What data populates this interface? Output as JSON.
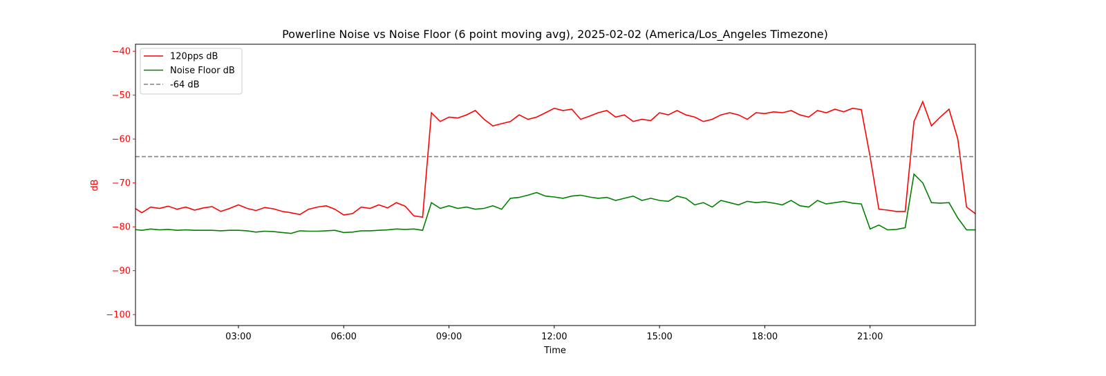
{
  "chart_data": {
    "type": "line",
    "title": "Powerline Noise vs Noise Floor (6 point moving avg), 2025-02-02 (America/Los_Angeles Timezone)",
    "xlabel": "Time",
    "ylabel": "dB",
    "xlim": [
      "00:04",
      "24:00"
    ],
    "ylim": [
      -102.5,
      -38.4
    ],
    "xticks": [
      "03:00",
      "06:00",
      "09:00",
      "12:00",
      "15:00",
      "18:00",
      "21:00"
    ],
    "yticks": [
      -40,
      -50,
      -60,
      -70,
      -80,
      -90,
      -100
    ],
    "ytick_labels": [
      "−40",
      "−50",
      "−60",
      "−70",
      "−80",
      "−90",
      "−100"
    ],
    "grid": false,
    "legend_placement": "top-left",
    "axis_label_color": "#ff0000",
    "x": [
      "00:00",
      "00:15",
      "00:30",
      "00:45",
      "01:00",
      "01:15",
      "01:30",
      "01:45",
      "02:00",
      "02:15",
      "02:30",
      "02:45",
      "03:00",
      "03:15",
      "03:30",
      "03:45",
      "04:00",
      "04:15",
      "04:30",
      "04:45",
      "05:00",
      "05:15",
      "05:30",
      "05:45",
      "06:00",
      "06:15",
      "06:30",
      "06:45",
      "07:00",
      "07:15",
      "07:30",
      "07:45",
      "08:00",
      "08:15",
      "08:30",
      "08:45",
      "09:00",
      "09:15",
      "09:30",
      "09:45",
      "10:00",
      "10:15",
      "10:30",
      "10:45",
      "11:00",
      "11:15",
      "11:30",
      "11:45",
      "12:00",
      "12:15",
      "12:30",
      "12:45",
      "13:00",
      "13:15",
      "13:30",
      "13:45",
      "14:00",
      "14:15",
      "14:30",
      "14:45",
      "15:00",
      "15:15",
      "15:30",
      "15:45",
      "16:00",
      "16:15",
      "16:30",
      "16:45",
      "17:00",
      "17:15",
      "17:30",
      "17:45",
      "18:00",
      "18:15",
      "18:30",
      "18:45",
      "19:00",
      "19:15",
      "19:30",
      "19:45",
      "20:00",
      "20:15",
      "20:30",
      "20:45",
      "21:00",
      "21:15",
      "21:30",
      "21:45",
      "22:00",
      "22:15",
      "22:30",
      "22:45",
      "23:00",
      "23:15",
      "23:30",
      "23:45",
      "24:00"
    ],
    "series": [
      {
        "name": "120pps dB",
        "color": "#ff0000",
        "style": "solid",
        "values": [
          -75.5,
          -76.8,
          -75.5,
          -75.8,
          -75.3,
          -76,
          -75.5,
          -76.2,
          -75.7,
          -75.4,
          -76.5,
          -75.8,
          -75,
          -75.8,
          -76.3,
          -75.6,
          -75.9,
          -76.5,
          -76.8,
          -77.2,
          -76,
          -75.5,
          -75.2,
          -76,
          -77.3,
          -77,
          -75.5,
          -75.8,
          -75,
          -75.7,
          -74.5,
          -75.3,
          -77.5,
          -77.8,
          -54,
          -56,
          -55,
          -55.2,
          -54.5,
          -53.5,
          -55.5,
          -57,
          -56.5,
          -56,
          -54.5,
          -55.5,
          -55,
          -54,
          -53,
          -53.5,
          -53.2,
          -55.5,
          -54.8,
          -54,
          -53.5,
          -55,
          -54.5,
          -56,
          -55.5,
          -55.8,
          -54,
          -54.5,
          -53.5,
          -54.5,
          -55,
          -56,
          -55.5,
          -54.5,
          -54,
          -54.5,
          -55.5,
          -54,
          -54.2,
          -53.8,
          -54,
          -53.5,
          -54.5,
          -55,
          -53.5,
          -54,
          -53.2,
          -53.8,
          -53,
          -53.3,
          -64,
          -76,
          -76.2,
          -76.5,
          -76.5,
          -56,
          -51.5,
          -57,
          -55,
          -53.2,
          -60,
          -75.5,
          -77
        ]
      },
      {
        "name": "Noise Floor dB",
        "color": "#008000",
        "style": "solid",
        "values": [
          -80.6,
          -80.8,
          -80.5,
          -80.7,
          -80.6,
          -80.8,
          -80.7,
          -80.8,
          -80.8,
          -80.8,
          -80.9,
          -80.8,
          -80.8,
          -80.9,
          -81.2,
          -81,
          -81.1,
          -81.3,
          -81.5,
          -80.9,
          -81,
          -81,
          -80.9,
          -80.8,
          -81.3,
          -81.2,
          -80.9,
          -80.9,
          -80.8,
          -80.7,
          -80.5,
          -80.6,
          -80.5,
          -80.8,
          -74.5,
          -75.8,
          -75.2,
          -75.8,
          -75.5,
          -76,
          -75.8,
          -75.2,
          -76,
          -73.5,
          -73.3,
          -72.8,
          -72.2,
          -73,
          -73.2,
          -73.5,
          -73,
          -72.8,
          -73.2,
          -73.5,
          -73.3,
          -74,
          -73.5,
          -73,
          -74,
          -73.5,
          -74,
          -74.2,
          -73,
          -73.5,
          -75,
          -74.5,
          -75.5,
          -74,
          -74.5,
          -75,
          -74.2,
          -74.5,
          -74.3,
          -74.6,
          -75,
          -74,
          -75.2,
          -75.5,
          -74,
          -74.8,
          -74.5,
          -74.2,
          -74.6,
          -74.8,
          -80.5,
          -79.6,
          -80.7,
          -80.6,
          -80.2,
          -68,
          -70,
          -74.5,
          -74.6,
          -74.5,
          -78,
          -80.7,
          -80.7
        ]
      },
      {
        "name": "-64 dB",
        "color": "#808080",
        "style": "dashed",
        "constant": -64
      }
    ]
  }
}
